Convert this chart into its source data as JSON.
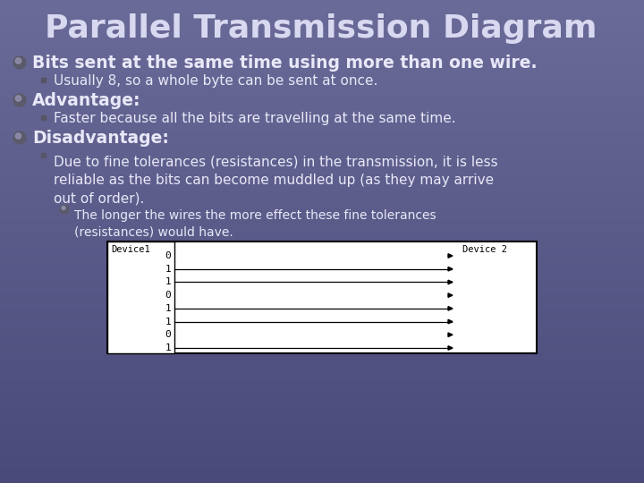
{
  "title": "Parallel Transmission Diagram",
  "bg_color_top": "#6b6b99",
  "bg_color_bot": "#4a4a7a",
  "title_color": "#d8d8f0",
  "text_color": "#e8e8f8",
  "bullet1_text": "Bits sent at the same time using more than one wire.",
  "sub1_text": "Usually 8, so a whole byte can be sent at once.",
  "bullet2_text": "Advantage:",
  "sub2_text": "Faster because all the bits are travelling at the same time.",
  "bullet3_text": "Disadvantage:",
  "sub3_text": "Due to fine tolerances (resistances) in the transmission, it is less\nreliable as the bits can become muddled up (as they may arrive\nout of order).",
  "sub3b_text": "The longer the wires the more effect these fine tolerances\n(resistances) would have.",
  "bits": [
    "0",
    "1",
    "1",
    "0",
    "1",
    "1",
    "0",
    "1"
  ],
  "device1_label": "Device1",
  "device2_label": "Device 2",
  "diagram_bg": "#ffffff",
  "diagram_border": "#000000",
  "wire_color": "#000000",
  "arrow_color": "#000000"
}
